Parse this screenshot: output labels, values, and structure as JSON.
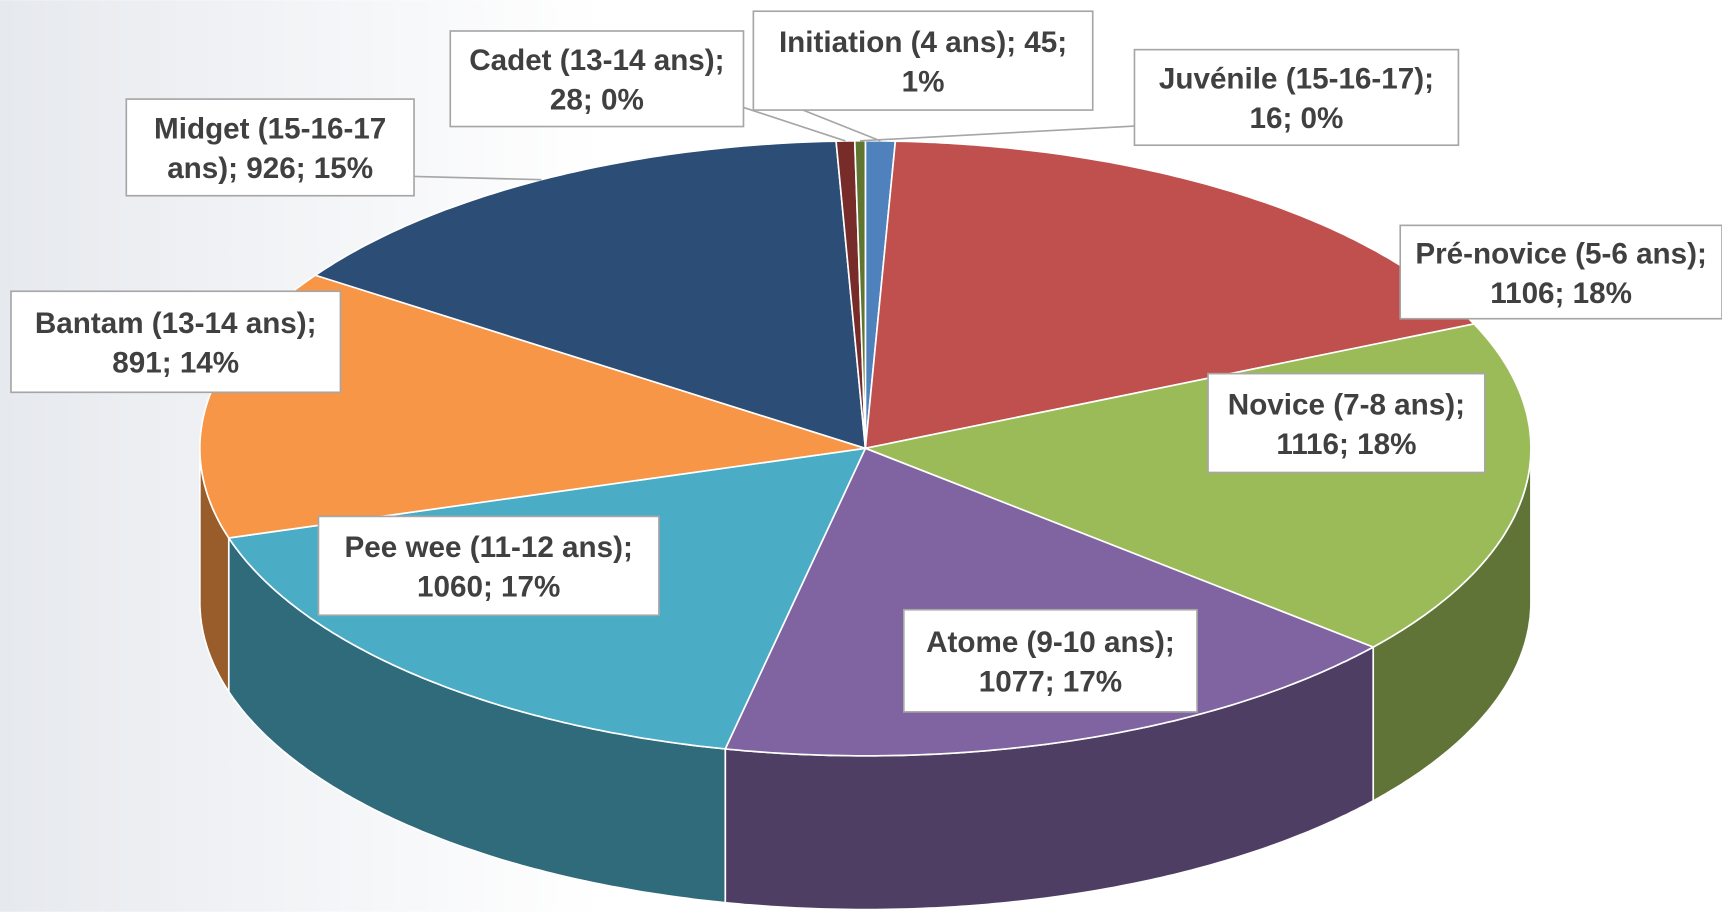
{
  "chart_data": {
    "type": "pie3d",
    "values": [
      45,
      1106,
      1116,
      1077,
      1060,
      891,
      926,
      28,
      16
    ],
    "value_labels": [
      "Initiation (4 ans); 45; 1%",
      "Pré-novice (5-6 ans); 1106; 18%",
      "Novice (7-8 ans); 1116; 18%",
      "Atome (9-10 ans); 1077; 17%",
      "Pee wee (11-12 ans); 1060; 17%",
      "Bantam (13-14 ans); 891; 14%",
      "Midget (15-16-17 ans); 926; 15%",
      "Cadet (13-14 ans); 28; 0%",
      "Juvénile (15-16-17); 16; 0%"
    ],
    "colors": [
      "#4f81bd",
      "#c0504d",
      "#9bbb59",
      "#8064a2",
      "#4bacc6",
      "#f79646",
      "#2c4d75",
      "#772c2a",
      "#5f7530"
    ]
  }
}
